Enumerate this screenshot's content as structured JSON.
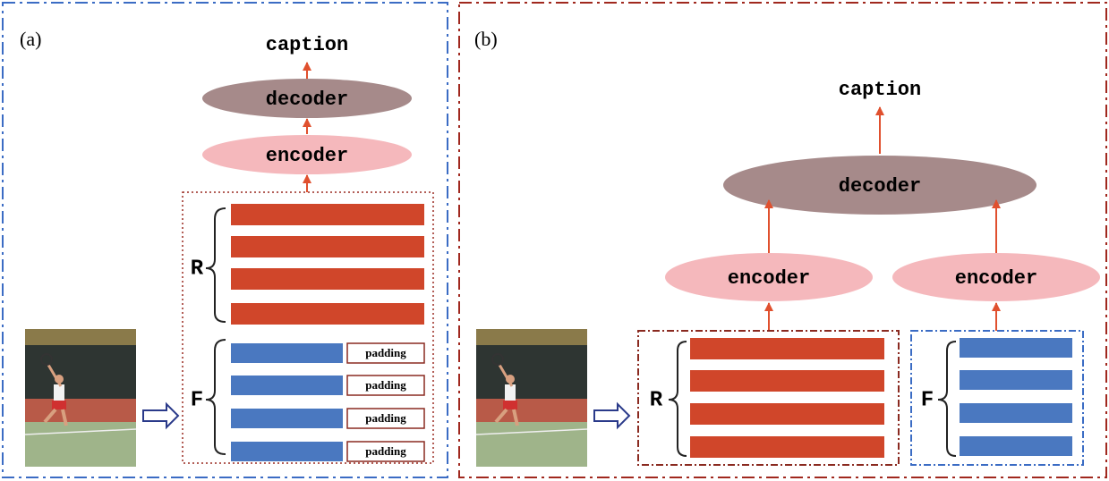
{
  "panel_a": {
    "label": "(a)",
    "caption": "caption",
    "decoder": "decoder",
    "encoder": "encoder",
    "r_label": "R",
    "f_label": "F",
    "padding": [
      "padding",
      "padding",
      "padding",
      "padding"
    ]
  },
  "panel_b": {
    "label": "(b)",
    "caption": "caption",
    "decoder": "decoder",
    "encoders": [
      "encoder",
      "encoder"
    ],
    "r_label": "R",
    "f_label": "F"
  }
}
